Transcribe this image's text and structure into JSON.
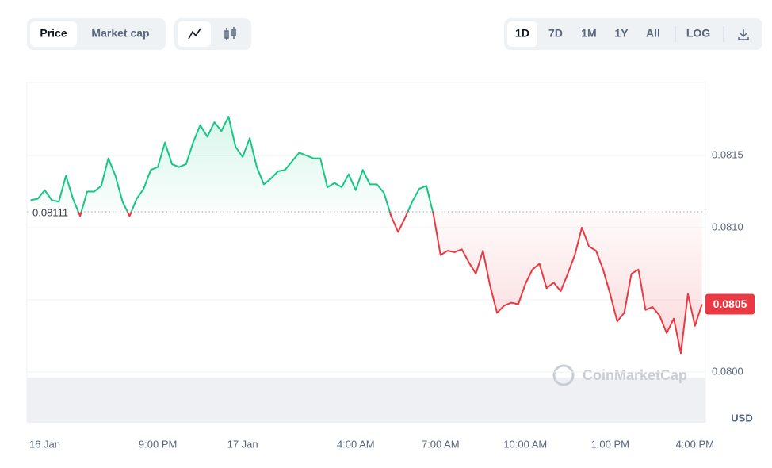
{
  "toolbar": {
    "metric_tabs": [
      "Price",
      "Market cap"
    ],
    "time_ranges": [
      "1D",
      "7D",
      "1M",
      "1Y",
      "All"
    ],
    "log": "LOG"
  },
  "chart_data": {
    "type": "line",
    "currency": "USD",
    "watermark": "CoinMarketCap",
    "x": [
      16.5,
      16.75,
      17,
      17.25,
      17.5,
      17.75,
      18,
      18.25,
      18.5,
      18.75,
      19,
      19.25,
      19.5,
      19.75,
      20,
      20.25,
      20.5,
      20.75,
      21,
      21.25,
      21.5,
      21.75,
      22,
      22.25,
      22.5,
      22.75,
      23,
      23.25,
      23.5,
      23.75,
      24,
      24.25,
      24.5,
      24.75,
      25,
      25.25,
      25.5,
      25.75,
      26,
      26.25,
      26.5,
      26.75,
      27,
      27.25,
      27.5,
      27.75,
      28,
      28.25,
      28.5,
      28.75,
      29,
      29.25,
      29.5,
      29.75,
      30,
      30.25,
      30.5,
      30.75,
      31,
      31.25,
      31.5,
      31.75,
      32,
      32.25,
      32.5,
      32.75,
      33,
      33.25,
      33.5,
      33.75,
      34,
      34.25,
      34.5,
      34.75,
      35,
      35.25,
      35.5,
      35.75,
      36,
      36.25,
      36.5,
      36.75,
      37,
      37.25,
      37.5,
      37.75,
      38,
      38.25,
      38.5,
      38.75,
      39,
      39.25,
      39.5,
      39.75,
      40,
      40.25
    ],
    "values": [
      0.08119,
      0.0812,
      0.08126,
      0.08119,
      0.08118,
      0.08136,
      0.0812,
      0.08108,
      0.08125,
      0.08125,
      0.08129,
      0.08148,
      0.08136,
      0.08118,
      0.08108,
      0.0812,
      0.08127,
      0.0814,
      0.08142,
      0.08159,
      0.08144,
      0.08142,
      0.08144,
      0.08159,
      0.08171,
      0.08163,
      0.08173,
      0.08167,
      0.08177,
      0.08156,
      0.08149,
      0.08162,
      0.08142,
      0.0813,
      0.08134,
      0.08139,
      0.0814,
      0.08146,
      0.08152,
      0.0815,
      0.08148,
      0.08148,
      0.08128,
      0.08131,
      0.08128,
      0.08137,
      0.08126,
      0.0814,
      0.0813,
      0.0813,
      0.08124,
      0.08108,
      0.08097,
      0.08107,
      0.08118,
      0.08127,
      0.08129,
      0.08109,
      0.08081,
      0.08084,
      0.08083,
      0.08085,
      0.08076,
      0.08068,
      0.08084,
      0.0806,
      0.08041,
      0.08046,
      0.08048,
      0.08047,
      0.08061,
      0.08071,
      0.08075,
      0.08058,
      0.08062,
      0.08056,
      0.08068,
      0.08081,
      0.081,
      0.08087,
      0.08084,
      0.08071,
      0.08054,
      0.08035,
      0.08041,
      0.08068,
      0.08071,
      0.08043,
      0.08045,
      0.08039,
      0.08027,
      0.08037,
      0.08013,
      0.08054,
      0.08032,
      0.08047
    ],
    "last_label": "0.0805",
    "reference_price": 0.08111,
    "colors": {
      "up": "#16c784",
      "down": "#ea3943"
    },
    "xlim": [
      16.37,
      40.37
    ],
    "xticks": [
      {
        "value": 17,
        "label": "16 Jan"
      },
      {
        "value": 21,
        "label": "9:00 PM"
      },
      {
        "value": 24,
        "label": "17 Jan"
      },
      {
        "value": 28,
        "label": "4:00 AM"
      },
      {
        "value": 31,
        "label": "7:00 AM"
      },
      {
        "value": 34,
        "label": "10:00 AM"
      },
      {
        "value": 37,
        "label": "1:00 PM"
      },
      {
        "value": 40,
        "label": "4:00 PM"
      }
    ],
    "ylim": [
      0.08,
      0.082
    ],
    "yticks": [
      {
        "value": 0.08,
        "label": "0.0800"
      },
      0.0805,
      {
        "value": 0.081,
        "label": "0.0810"
      },
      0.0815
    ],
    "grid": true
  }
}
